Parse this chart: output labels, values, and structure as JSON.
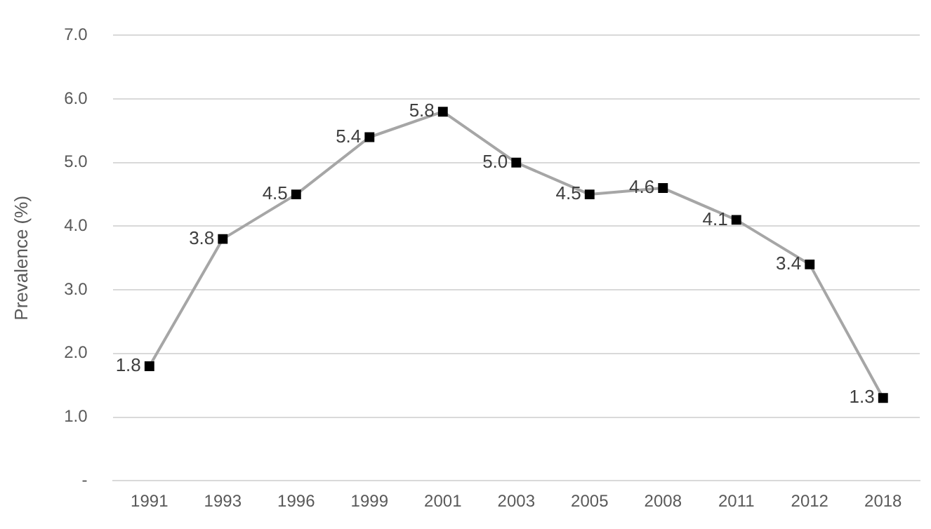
{
  "chart_data": {
    "type": "line",
    "ylabel": "Prevalence (%)",
    "categories": [
      "1991",
      "1993",
      "1996",
      "1999",
      "2001",
      "2003",
      "2005",
      "2008",
      "2011",
      "2012",
      "2018"
    ],
    "series": [
      {
        "color": "#a6a6a6",
        "values": [
          1.8,
          3.8,
          4.5,
          5.4,
          5.8,
          5.0,
          4.5,
          4.6,
          4.1,
          3.4,
          1.3
        ],
        "value_labels": [
          "1.8",
          "3.8",
          "4.5",
          "5.4",
          "5.8",
          "5.0",
          "4.5",
          "4.6",
          "4.1",
          "3.4",
          "1.3"
        ]
      }
    ],
    "ylim": [
      0,
      7
    ],
    "yticks": [
      {
        "value": 0,
        "label": "-"
      },
      {
        "value": 1,
        "label": "1.0"
      },
      {
        "value": 2,
        "label": "2.0"
      },
      {
        "value": 3,
        "label": "3.0"
      },
      {
        "value": 4,
        "label": "4.0"
      },
      {
        "value": 5,
        "label": "5.0"
      },
      {
        "value": 6,
        "label": "6.0"
      },
      {
        "value": 7,
        "label": "7.0"
      }
    ],
    "grid": "y",
    "legend": false,
    "marker": "square",
    "line_style": "solid"
  }
}
